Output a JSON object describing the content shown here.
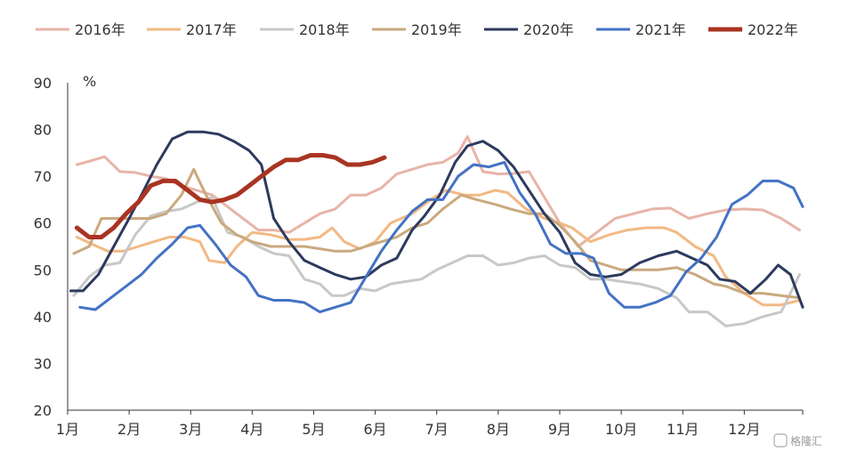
{
  "chart_data": {
    "type": "line",
    "unit": "%",
    "ylim": [
      20,
      90
    ],
    "yticks": [
      20,
      30,
      40,
      50,
      60,
      70,
      80,
      90
    ],
    "xlim": [
      1,
      12.95
    ],
    "months": [
      {
        "label": "1月",
        "x": 1
      },
      {
        "label": "2月",
        "x": 2
      },
      {
        "label": "3月",
        "x": 3
      },
      {
        "label": "4月",
        "x": 4
      },
      {
        "label": "5月",
        "x": 5
      },
      {
        "label": "6月",
        "x": 6
      },
      {
        "label": "7月",
        "x": 7
      },
      {
        "label": "8月",
        "x": 8
      },
      {
        "label": "9月",
        "x": 9
      },
      {
        "label": "10月",
        "x": 10
      },
      {
        "label": "11月",
        "x": 11
      },
      {
        "label": "12月",
        "x": 12
      }
    ],
    "legend_position": "top",
    "series": [
      {
        "name": "2016年",
        "color": "#E8B4A8",
        "width": 3,
        "x": [
          1.15,
          1.35,
          1.6,
          1.85,
          2.1,
          2.35,
          2.6,
          2.85,
          3.1,
          3.35,
          3.6,
          3.85,
          4.1,
          4.35,
          4.6,
          4.85,
          5.1,
          5.35,
          5.6,
          5.85,
          6.1,
          6.35,
          6.6,
          6.85,
          7.1,
          7.35,
          7.5,
          7.75,
          8.0,
          8.25,
          8.5,
          9.0,
          9.3,
          9.55,
          9.9,
          10.2,
          10.5,
          10.8,
          11.1,
          11.4,
          11.7,
          12.0,
          12.3,
          12.6,
          12.9
        ],
        "y": [
          72.5,
          73.2,
          74.2,
          71,
          70.8,
          70,
          69.5,
          68,
          67,
          66,
          63.5,
          61,
          58.5,
          58.5,
          58,
          60,
          62,
          63,
          66,
          66,
          67.5,
          70.5,
          71.5,
          72.5,
          73,
          75,
          78.5,
          71,
          70.5,
          70.6,
          71,
          60,
          55,
          57.5,
          61,
          62,
          63,
          63.2,
          61,
          62,
          62.8,
          63,
          62.8,
          61,
          58.5
        ]
      },
      {
        "name": "2017年",
        "color": "#F2B983",
        "width": 3,
        "x": [
          1.15,
          1.4,
          1.65,
          1.9,
          2.15,
          2.4,
          2.65,
          2.9,
          3.15,
          3.3,
          3.55,
          3.75,
          4.0,
          4.3,
          4.6,
          4.85,
          5.1,
          5.3,
          5.5,
          5.75,
          6.0,
          6.25,
          6.6,
          6.9,
          7.15,
          7.45,
          7.7,
          7.95,
          8.15,
          8.45,
          8.75,
          9.0,
          9.2,
          9.5,
          9.8,
          10.1,
          10.4,
          10.7,
          10.9,
          11.2,
          11.5,
          11.7,
          12.0,
          12.3,
          12.6,
          12.9
        ],
        "y": [
          57,
          55.5,
          54,
          54,
          55,
          56,
          57,
          57,
          56,
          52,
          51.5,
          55,
          58,
          57.5,
          56.5,
          56.5,
          57,
          59,
          56,
          54.5,
          56,
          60,
          62,
          65,
          67,
          66,
          66,
          67,
          66.5,
          63,
          61,
          60,
          59,
          56,
          57.5,
          58.5,
          59,
          59,
          58,
          55,
          53,
          48.5,
          45,
          42.5,
          42.5,
          43.5
        ]
      },
      {
        "name": "2018年",
        "color": "#C8C8C8",
        "width": 3,
        "x": [
          1.1,
          1.35,
          1.6,
          1.85,
          2.1,
          2.35,
          2.6,
          2.85,
          3.1,
          3.35,
          3.6,
          3.85,
          4.1,
          4.35,
          4.6,
          4.85,
          5.1,
          5.3,
          5.5,
          5.75,
          6.0,
          6.25,
          6.5,
          6.75,
          7.0,
          7.25,
          7.5,
          7.75,
          8.0,
          8.25,
          8.5,
          8.75,
          9.0,
          9.25,
          9.5,
          9.75,
          10.0,
          10.3,
          10.6,
          10.9,
          11.1,
          11.4,
          11.7,
          12.0,
          12.3,
          12.6,
          12.9
        ],
        "y": [
          44.5,
          48.5,
          51,
          51.5,
          57.5,
          61.5,
          62.5,
          63,
          64.5,
          65.5,
          58,
          57,
          55,
          53.5,
          53,
          48,
          47,
          44.5,
          44.5,
          46,
          45.5,
          47,
          47.5,
          48,
          50,
          51.5,
          53,
          53,
          51,
          51.5,
          52.5,
          53,
          51,
          50.5,
          48,
          48,
          47.5,
          47,
          46,
          44,
          41,
          41,
          38,
          38.5,
          40,
          41,
          49
        ]
      },
      {
        "name": "2019年",
        "color": "#C9A97E",
        "width": 3,
        "x": [
          1.1,
          1.35,
          1.55,
          1.8,
          2.1,
          2.35,
          2.6,
          2.85,
          3.05,
          3.25,
          3.5,
          3.75,
          4.0,
          4.3,
          4.6,
          4.85,
          5.1,
          5.35,
          5.6,
          5.85,
          6.1,
          6.35,
          6.6,
          6.85,
          7.1,
          7.4,
          7.65,
          7.95,
          8.2,
          8.5,
          8.75,
          9.0,
          9.25,
          9.5,
          9.75,
          10.0,
          10.3,
          10.6,
          10.9,
          11.2,
          11.5,
          11.7,
          12.0,
          12.3,
          12.6,
          12.9
        ],
        "y": [
          53.5,
          55,
          61,
          61,
          61,
          61,
          62,
          66,
          71.5,
          66,
          60,
          57.5,
          56,
          55,
          55,
          55,
          54.5,
          54,
          54,
          55,
          56,
          57,
          59,
          60,
          63,
          66,
          65,
          64,
          63,
          62,
          62,
          59.5,
          56,
          52,
          51,
          50,
          50,
          50,
          50.5,
          49,
          47,
          46.5,
          45,
          45,
          44.5,
          44
        ]
      },
      {
        "name": "2020年",
        "color": "#2D3A5E",
        "width": 3,
        "x": [
          1.05,
          1.25,
          1.5,
          1.75,
          2.0,
          2.2,
          2.45,
          2.7,
          2.95,
          3.2,
          3.45,
          3.7,
          3.95,
          4.15,
          4.35,
          4.6,
          4.85,
          5.1,
          5.35,
          5.6,
          5.85,
          6.1,
          6.35,
          6.6,
          6.8,
          7.05,
          7.3,
          7.5,
          7.75,
          8.0,
          8.25,
          8.5,
          8.75,
          9.0,
          9.25,
          9.5,
          9.75,
          10.0,
          10.3,
          10.6,
          10.9,
          11.15,
          11.4,
          11.6,
          11.85,
          12.1,
          12.35,
          12.55,
          12.75,
          12.95
        ],
        "y": [
          45.5,
          45.5,
          49,
          55,
          61,
          66,
          72.5,
          78,
          79.5,
          79.5,
          79,
          77.5,
          75.5,
          72.5,
          61,
          56,
          52,
          50.5,
          49,
          48,
          48.5,
          51,
          52.5,
          58.5,
          61.5,
          66,
          73,
          76.5,
          77.5,
          75.5,
          72,
          67,
          62,
          58,
          51.5,
          49,
          48.5,
          49,
          51.5,
          53,
          54,
          52.5,
          51,
          48,
          47.5,
          45,
          48,
          51,
          49,
          42
        ]
      },
      {
        "name": "2021年",
        "color": "#4472C4",
        "width": 3,
        "x": [
          1.2,
          1.45,
          1.7,
          1.95,
          2.2,
          2.45,
          2.7,
          2.95,
          3.15,
          3.4,
          3.65,
          3.9,
          4.1,
          4.35,
          4.6,
          4.85,
          5.1,
          5.35,
          5.6,
          5.85,
          6.1,
          6.35,
          6.6,
          6.85,
          7.1,
          7.35,
          7.6,
          7.85,
          8.1,
          8.35,
          8.6,
          8.85,
          9.1,
          9.35,
          9.55,
          9.8,
          10.05,
          10.3,
          10.55,
          10.8,
          11.05,
          11.3,
          11.55,
          11.8,
          12.05,
          12.3,
          12.55,
          12.8,
          12.95
        ],
        "y": [
          42,
          41.5,
          44,
          46.5,
          49,
          52.5,
          55.5,
          59,
          59.5,
          55.5,
          51,
          48.5,
          44.5,
          43.5,
          43.5,
          43,
          41,
          42,
          43,
          48.5,
          54,
          58.5,
          62.5,
          65,
          65,
          70,
          72.5,
          72,
          73,
          66.5,
          62,
          55.5,
          53.5,
          53.5,
          52.5,
          45,
          42,
          42,
          43,
          44.5,
          49.5,
          52.5,
          57,
          64,
          66,
          69,
          69,
          67.5,
          63.5
        ]
      },
      {
        "name": "2022年",
        "color": "#A93422",
        "width": 5,
        "x": [
          1.15,
          1.35,
          1.55,
          1.75,
          1.95,
          2.15,
          2.35,
          2.55,
          2.75,
          2.95,
          3.15,
          3.35,
          3.55,
          3.75,
          3.95,
          4.15,
          4.35,
          4.55,
          4.75,
          4.95,
          5.15,
          5.35,
          5.55,
          5.75,
          5.95,
          6.15
        ],
        "y": [
          59,
          57,
          57,
          59,
          62,
          64.5,
          68,
          69,
          69,
          67,
          65,
          64.5,
          65,
          66,
          68,
          70,
          72,
          73.5,
          73.5,
          74.5,
          74.5,
          74,
          72.5,
          72.5,
          73,
          74
        ]
      }
    ]
  },
  "watermark": "格隆汇",
  "colors": {
    "axis": "#333333",
    "background": "#ffffff"
  }
}
